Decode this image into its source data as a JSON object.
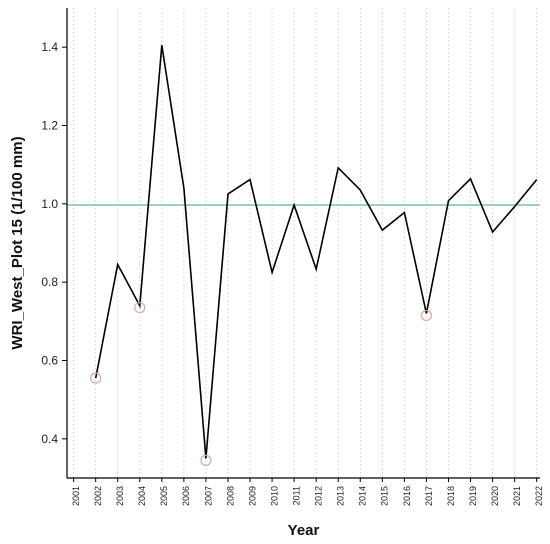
{
  "chart_data": {
    "type": "line",
    "title": "",
    "xlabel": "Year",
    "ylabel": "WRI_West_Plot 15 (1/100 mm)",
    "xlim": [
      2001,
      2022
    ],
    "ylim": [
      0.3,
      1.5
    ],
    "yticks": [
      0.4,
      0.6,
      0.8,
      1.0,
      1.2,
      1.4
    ],
    "ytick_labels": [
      "0.4",
      "0.6",
      "0.8",
      "1.0",
      "1.2",
      "1.4"
    ],
    "xticks": [
      2001,
      2002,
      2003,
      2004,
      2005,
      2006,
      2007,
      2008,
      2009,
      2010,
      2011,
      2012,
      2013,
      2014,
      2015,
      2016,
      2017,
      2018,
      2019,
      2020,
      2021,
      2022
    ],
    "xtick_labels": [
      "2001",
      "2002",
      "2003",
      "2004",
      "2005",
      "2006",
      "2007",
      "2008",
      "2009",
      "2010",
      "2011",
      "2012",
      "2013",
      "2014",
      "2015",
      "2016",
      "2017",
      "2018",
      "2019",
      "2020",
      "2021",
      "2022"
    ],
    "vertical_grid": "dotted",
    "series": [
      {
        "x": [
          2002,
          2003,
          2004,
          2005,
          2006,
          2007,
          2008,
          2009,
          2010,
          2011,
          2012,
          2013,
          2014,
          2015,
          2016,
          2017,
          2018,
          2019,
          2020,
          2021,
          2022
        ],
        "y": [
          0.555,
          0.845,
          0.74,
          1.405,
          1.04,
          0.35,
          1.025,
          1.062,
          0.825,
          0.997,
          0.833,
          1.092,
          1.035,
          0.933,
          0.978,
          0.72,
          1.008,
          1.064,
          0.928,
          0.993,
          1.062
        ],
        "color": "#000000"
      }
    ],
    "reference_line": {
      "y": 0.997,
      "color": "#5dbb9a"
    },
    "highlighted_points": {
      "x": [
        2002,
        2004,
        2007,
        2017
      ],
      "y": [
        0.555,
        0.735,
        0.345,
        0.715
      ],
      "color": "#d9a8a8"
    }
  }
}
